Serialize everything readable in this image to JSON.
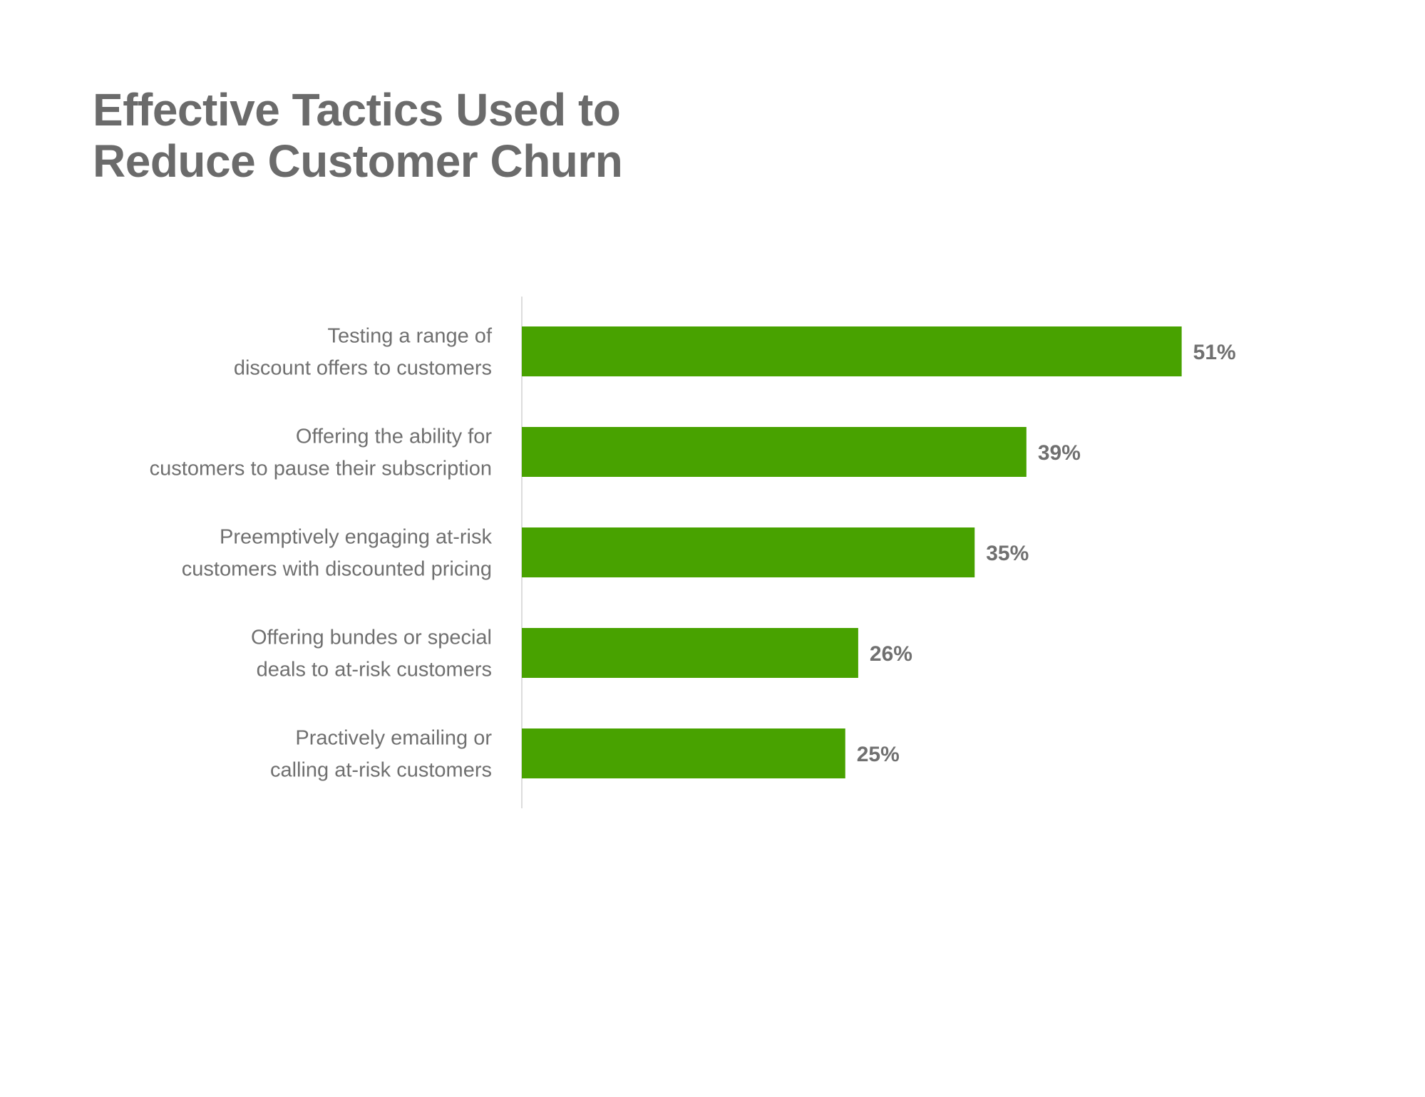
{
  "title": {
    "line1": "Effective Tactics Used to",
    "line2": "Reduce Customer Churn"
  },
  "colors": {
    "bar": "#48a200",
    "text": "#6b6b6b",
    "axis": "#dddddd"
  },
  "chart_data": {
    "type": "bar",
    "orientation": "horizontal",
    "title": "Effective Tactics Used to Reduce Customer Churn",
    "categories": [
      [
        "Testing a range of",
        "discount offers to customers"
      ],
      [
        "Offering the ability for",
        "customers to pause their subscription"
      ],
      [
        "Preemptively engaging at-risk",
        "customers with discounted pricing"
      ],
      [
        "Offering bundes or special",
        "deals to at-risk customers"
      ],
      [
        "Practively emailing or",
        "calling at-risk customers"
      ]
    ],
    "values": [
      51,
      39,
      35,
      26,
      25
    ],
    "value_labels": [
      "51%",
      "39%",
      "35%",
      "26%",
      "25%"
    ],
    "xlim": [
      0,
      100
    ],
    "grid": false,
    "legend": "none"
  }
}
